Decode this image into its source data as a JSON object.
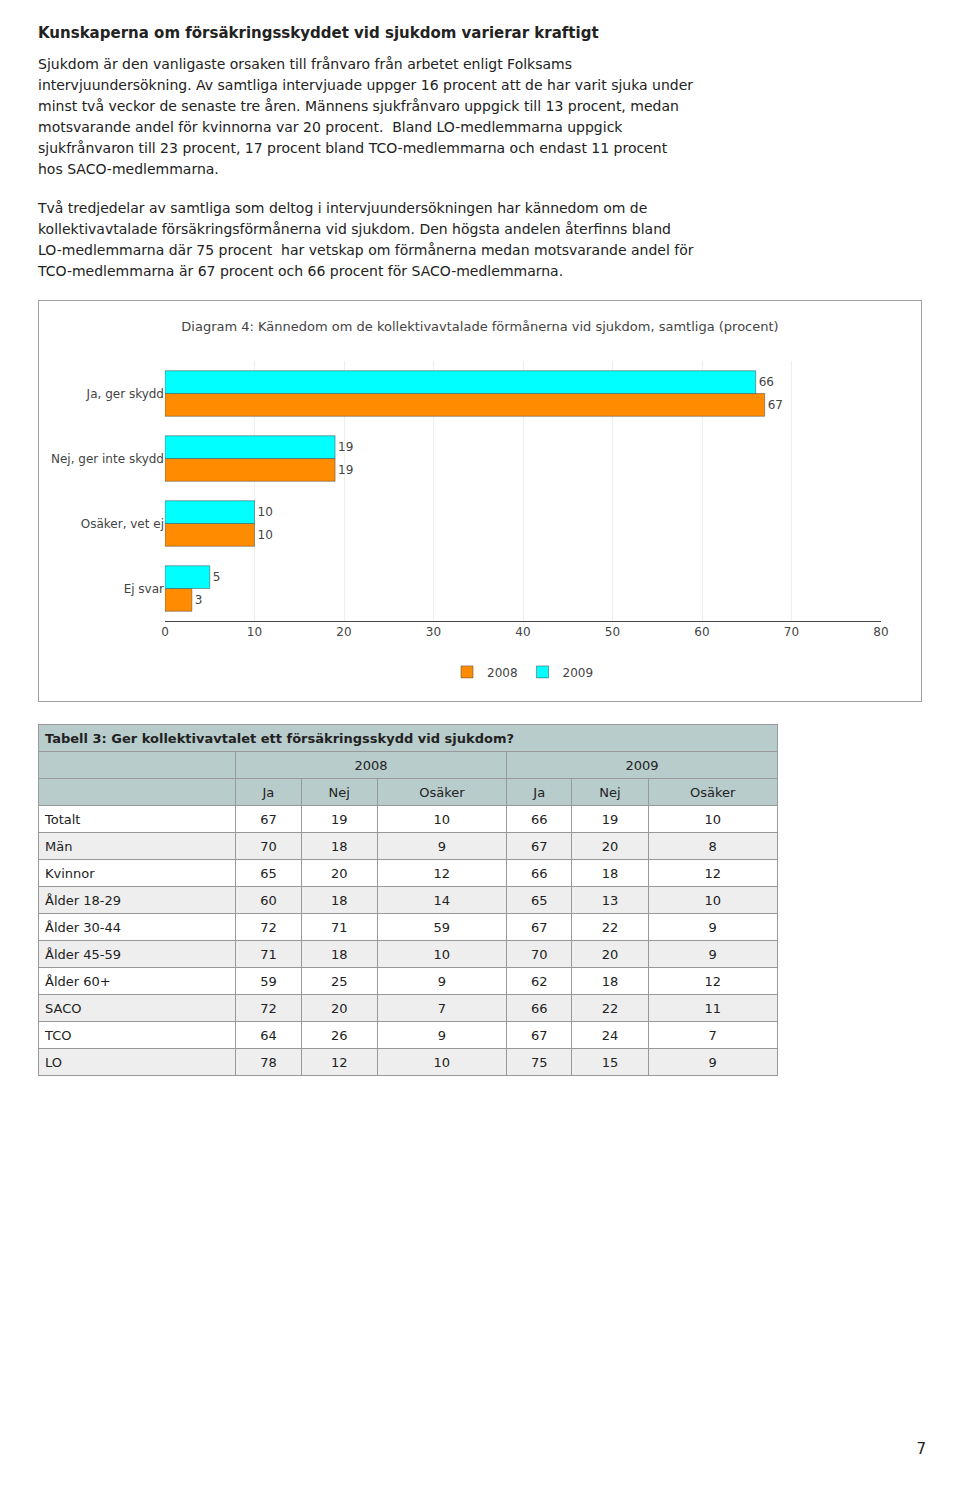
{
  "page_text": {
    "heading": "Kunskaperna om försäkringsskyddet vid sjukdom varierar kraftigt",
    "paragraphs": [
      [
        "Sjukdom är den vanligaste orsaken till frånvaro från arbetet enligt Folksams",
        "intervjuundersökning. Av samtliga intervjuade uppger 16 procent att de har varit sjuka under",
        "minst två veckor de senaste tre åren. Männens sjukfrånvaro uppgick till 13 procent, medan",
        "motsvarande andel för kvinnorna var 20 procent.  Bland LO-medlemmarna uppgick",
        "sjukfrånvaron till 23 procent, 17 procent bland TCO-medlemmarna och endast 11 procent",
        "hos SACO-medlemmarna."
      ],
      [
        "Två tredjedelar av samtliga som deltog i intervjuundersökningen har kännedom om de",
        "kollektivavtalade försäkringsförmånerna vid sjukdom. Den högsta andelen återfinns bland",
        "LO-medlemmarna där 75 procent  har vetskap om förmånerna medan motsvarande andel för",
        "TCO-medlemmarna är 67 procent och 66 procent för SACO-medlemmarna."
      ]
    ],
    "page_number": "7"
  },
  "chart_data": [
    {
      "type": "bar",
      "title": "Diagram 4: Kännedom om de kollektivavtalade förmånerna vid sjukdom, samtliga (procent)",
      "orientation": "horizontal",
      "categories": [
        "Ja, ger skydd",
        "Nej, ger inte skydd",
        "Osäker, vet ej",
        "Ej svar"
      ],
      "series": [
        {
          "name": "2008",
          "color": "#FF8C00",
          "values": [
            67,
            19,
            10,
            3
          ]
        },
        {
          "name": "2009",
          "color": "#00FFFF",
          "values": [
            66,
            19,
            10,
            5
          ]
        }
      ],
      "xlim": [
        0,
        80
      ],
      "xticks": [
        0,
        10,
        20,
        30,
        40,
        50,
        60,
        70,
        80
      ],
      "grid": true,
      "data_labels": true,
      "legend": "bottom"
    },
    {
      "type": "table",
      "title": "Tabell 3: Ger kollektivavtalet ett försäkringsskydd vid sjukdom?",
      "color": "#B8CCCC",
      "column_groups": [
        {
          "label": "2008",
          "columns": [
            "Ja",
            "Nej",
            "Osäker"
          ]
        },
        {
          "label": "2009",
          "columns": [
            "Ja",
            "Nej",
            "Osäker"
          ]
        }
      ],
      "rows": [
        {
          "label": "Totalt",
          "values": [
            67,
            19,
            10,
            66,
            19,
            10
          ]
        },
        {
          "label": "Män",
          "values": [
            70,
            18,
            9,
            67,
            20,
            8
          ]
        },
        {
          "label": "Kvinnor",
          "values": [
            65,
            20,
            12,
            66,
            18,
            12
          ]
        },
        {
          "label": "Ålder 18-29",
          "values": [
            60,
            18,
            14,
            65,
            13,
            10
          ]
        },
        {
          "label": "Ålder 30-44",
          "values": [
            72,
            71,
            59,
            67,
            22,
            9
          ]
        },
        {
          "label": "Ålder 45-59",
          "values": [
            71,
            18,
            10,
            70,
            20,
            9
          ]
        },
        {
          "label": "Ålder 60+",
          "values": [
            59,
            25,
            9,
            62,
            18,
            12
          ]
        },
        {
          "label": "SACO",
          "values": [
            72,
            20,
            7,
            66,
            22,
            11
          ]
        },
        {
          "label": "TCO",
          "values": [
            64,
            26,
            9,
            67,
            24,
            7
          ]
        },
        {
          "label": "LO",
          "values": [
            78,
            12,
            10,
            75,
            15,
            9
          ]
        }
      ]
    }
  ]
}
